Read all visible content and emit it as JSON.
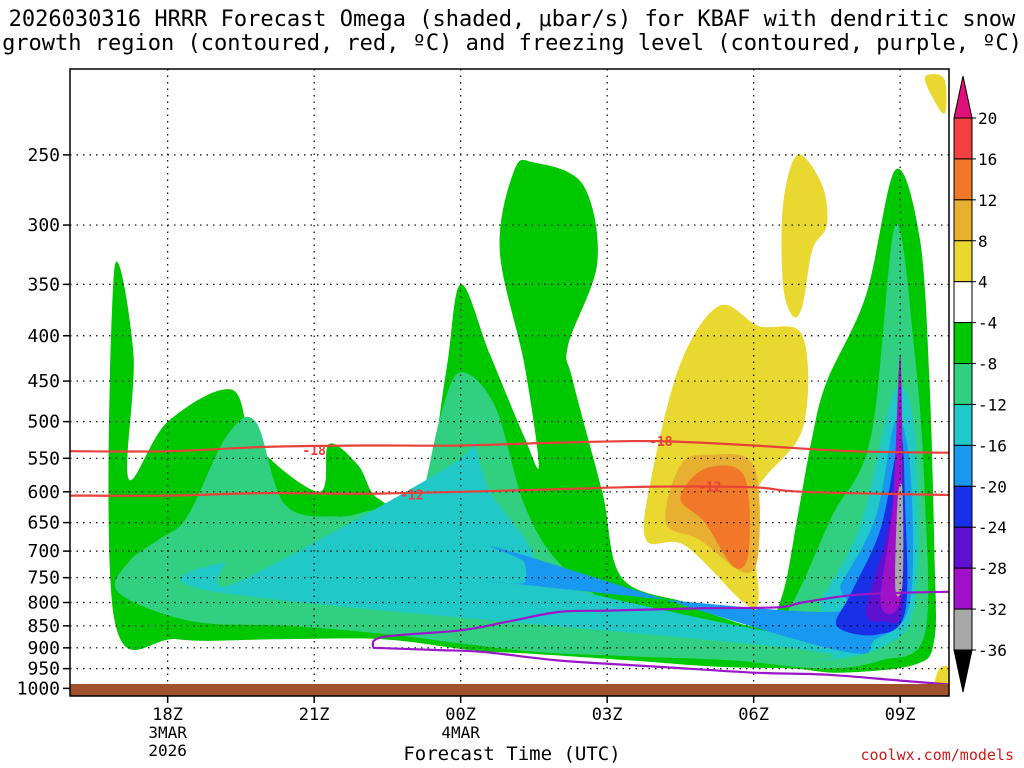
{
  "title_line1": "2026030316 HRRR Forecast Omega (shaded, μbar/s) for KBAF with dendritic snow",
  "title_line2": "growth region (contoured, red, ºC) and freezing level (contoured, purple, ºC)",
  "credit": "coolwx.com/models",
  "colors": {
    "dgz_line": "#e8403a",
    "freezing_line": "#9a16c8",
    "ground": "#a0522d"
  },
  "chart_data": {
    "type": "heatmap",
    "xlabel": "Forecast Time (UTC)",
    "x_ticks": [
      {
        "label": "18Z",
        "sub": [
          "3MAR",
          "2026"
        ],
        "hour": 18
      },
      {
        "label": "21Z",
        "sub": [],
        "hour": 21
      },
      {
        "label": "00Z",
        "sub": [
          "4MAR"
        ],
        "hour": 24
      },
      {
        "label": "03Z",
        "sub": [],
        "hour": 27
      },
      {
        "label": "06Z",
        "sub": [],
        "hour": 30
      },
      {
        "label": "09Z",
        "sub": [],
        "hour": 33
      }
    ],
    "xlim": [
      16,
      34
    ],
    "y_ticks": [
      250,
      300,
      350,
      400,
      450,
      500,
      550,
      600,
      650,
      700,
      750,
      800,
      850,
      900,
      950,
      1000
    ],
    "ylim": [
      200,
      1020
    ],
    "y_scale": "log-pressure",
    "colorbar": {
      "labels": [
        "20",
        "16",
        "12",
        "8",
        "4",
        "-4",
        "-8",
        "-12",
        "-16",
        "-20",
        "-24",
        "-28",
        "-32",
        "-36"
      ],
      "colors": [
        "#e0107a",
        "#f44040",
        "#f07828",
        "#e8b030",
        "#e8d830",
        "#ffffff",
        "#00c800",
        "#30d080",
        "#20c8c8",
        "#1898f0",
        "#1830e8",
        "#6010d0",
        "#a010c8",
        "#a8a8a8",
        "#000000"
      ]
    },
    "shaded_regions": [
      {
        "level": -4,
        "color": "#00c800",
        "points": [
          [
            16.9,
            830
          ],
          [
            16.9,
            340
          ],
          [
            17.3,
            420
          ],
          [
            17.2,
            580
          ],
          [
            18.0,
            500
          ],
          [
            19.3,
            460
          ],
          [
            19.8,
            530
          ],
          [
            21.1,
            600
          ],
          [
            21.3,
            530
          ],
          [
            21.9,
            560
          ],
          [
            22.3,
            610
          ],
          [
            23.2,
            620
          ],
          [
            23.7,
            440
          ],
          [
            24.0,
            350
          ],
          [
            24.6,
            420
          ],
          [
            25.3,
            520
          ],
          [
            25.6,
            560
          ],
          [
            25.3,
            430
          ],
          [
            24.8,
            320
          ],
          [
            25.1,
            260
          ],
          [
            25.5,
            255
          ],
          [
            26.5,
            270
          ],
          [
            26.8,
            330
          ],
          [
            26.2,
            410
          ],
          [
            26.3,
            450
          ],
          [
            26.9,
            600
          ],
          [
            27.3,
            750
          ],
          [
            28.6,
            800
          ],
          [
            29.3,
            830
          ],
          [
            30.2,
            850
          ],
          [
            30.6,
            780
          ],
          [
            30.9,
            640
          ],
          [
            31.2,
            520
          ],
          [
            31.5,
            450
          ],
          [
            32.3,
            360
          ],
          [
            32.9,
            260
          ],
          [
            33.4,
            310
          ],
          [
            33.6,
            450
          ],
          [
            33.7,
            700
          ],
          [
            33.7,
            880
          ],
          [
            33.3,
            940
          ],
          [
            31.8,
            960
          ],
          [
            30.8,
            950
          ],
          [
            29.2,
            945
          ],
          [
            27.5,
            930
          ],
          [
            25.6,
            915
          ],
          [
            24.2,
            905
          ],
          [
            22.4,
            880
          ],
          [
            20.3,
            880
          ],
          [
            18.2,
            880
          ]
        ]
      },
      {
        "level": -8,
        "color": "#30d080",
        "points": [
          [
            17.0,
            780
          ],
          [
            17.2,
            720
          ],
          [
            17.8,
            680
          ],
          [
            18.4,
            640
          ],
          [
            19.2,
            520
          ],
          [
            19.8,
            500
          ],
          [
            20.4,
            620
          ],
          [
            21.5,
            640
          ],
          [
            22.3,
            630
          ],
          [
            23.0,
            660
          ],
          [
            23.6,
            490
          ],
          [
            24.0,
            440
          ],
          [
            24.7,
            480
          ],
          [
            25.3,
            620
          ],
          [
            26.0,
            720
          ],
          [
            27.2,
            810
          ],
          [
            28.8,
            850
          ],
          [
            30.2,
            870
          ],
          [
            30.8,
            800
          ],
          [
            31.6,
            640
          ],
          [
            32.4,
            520
          ],
          [
            32.9,
            300
          ],
          [
            33.3,
            420
          ],
          [
            33.5,
            600
          ],
          [
            33.5,
            870
          ],
          [
            32.6,
            930
          ],
          [
            31.4,
            950
          ],
          [
            29.6,
            930
          ],
          [
            27.5,
            920
          ],
          [
            25.6,
            910
          ],
          [
            24.0,
            890
          ],
          [
            22.6,
            870
          ],
          [
            20.5,
            850
          ],
          [
            18.5,
            840
          ]
        ]
      },
      {
        "level": -12,
        "color": "#20c8c8",
        "points": [
          [
            19.1,
            780
          ],
          [
            19.2,
            720
          ],
          [
            19.4,
            760
          ],
          [
            23.8,
            560
          ],
          [
            24.2,
            520
          ],
          [
            24.6,
            600
          ],
          [
            25.4,
            690
          ],
          [
            25.6,
            770
          ],
          [
            24.8,
            800
          ],
          [
            24.0,
            790
          ],
          [
            23.5,
            720
          ],
          [
            30.8,
            870
          ],
          [
            31.4,
            790
          ],
          [
            32.2,
            650
          ],
          [
            32.9,
            460
          ],
          [
            33.3,
            520
          ],
          [
            33.3,
            800
          ],
          [
            32.6,
            900
          ],
          [
            31.2,
            930
          ],
          [
            30.7,
            900
          ]
        ]
      },
      {
        "level": -16,
        "color": "#1898f0",
        "points": [
          [
            25.0,
            700
          ],
          [
            25.3,
            720
          ],
          [
            25.3,
            760
          ],
          [
            24.9,
            760
          ],
          [
            31.4,
            820
          ],
          [
            31.8,
            760
          ],
          [
            32.5,
            640
          ],
          [
            32.9,
            500
          ],
          [
            33.2,
            560
          ],
          [
            33.2,
            800
          ],
          [
            32.5,
            880
          ],
          [
            31.5,
            900
          ]
        ]
      },
      {
        "level": -20,
        "color": "#1830e8",
        "points": [
          [
            31.7,
            850
          ],
          [
            32.0,
            780
          ],
          [
            32.6,
            660
          ],
          [
            33.0,
            520
          ],
          [
            33.1,
            620
          ],
          [
            33.1,
            820
          ],
          [
            32.5,
            870
          ]
        ]
      },
      {
        "level": -24,
        "color": "#6010d0",
        "points": [
          [
            32.3,
            820
          ],
          [
            32.7,
            680
          ],
          [
            33.0,
            560
          ],
          [
            33.05,
            700
          ],
          [
            33.0,
            830
          ],
          [
            32.7,
            840
          ]
        ]
      },
      {
        "level": -28,
        "color": "#a010c8",
        "points": [
          [
            32.6,
            800
          ],
          [
            32.85,
            620
          ],
          [
            33.0,
            420
          ],
          [
            33.05,
            640
          ],
          [
            33.0,
            800
          ]
        ]
      },
      {
        "level": -32,
        "color": "#a8a8a8",
        "points": [
          [
            32.9,
            770
          ],
          [
            32.95,
            610
          ],
          [
            33.05,
            600
          ],
          [
            33.05,
            760
          ]
        ]
      },
      {
        "level": 4,
        "color": "#e8d830",
        "points": [
          [
            27.8,
            680
          ],
          [
            27.9,
            580
          ],
          [
            28.5,
            430
          ],
          [
            29.3,
            370
          ],
          [
            30.1,
            390
          ],
          [
            31.0,
            400
          ],
          [
            31.0,
            510
          ],
          [
            30.0,
            610
          ],
          [
            30.1,
            790
          ],
          [
            29.8,
            800
          ],
          [
            28.6,
            690
          ]
        ]
      },
      {
        "level": 4,
        "color": "#e8d830",
        "points": [
          [
            30.6,
            285
          ],
          [
            30.9,
            250
          ],
          [
            31.4,
            270
          ],
          [
            31.5,
            300
          ],
          [
            31.2,
            320
          ],
          [
            31.0,
            370
          ],
          [
            30.8,
            380
          ],
          [
            30.6,
            350
          ]
        ]
      },
      {
        "level": 8,
        "color": "#e8b030",
        "points": [
          [
            28.2,
            650
          ],
          [
            28.5,
            560
          ],
          [
            29.1,
            545
          ],
          [
            30.0,
            560
          ],
          [
            30.1,
            700
          ],
          [
            29.8,
            740
          ],
          [
            28.9,
            680
          ]
        ]
      },
      {
        "level": 12,
        "color": "#f07828",
        "points": [
          [
            28.5,
            610
          ],
          [
            29.0,
            565
          ],
          [
            29.8,
            575
          ],
          [
            29.9,
            700
          ],
          [
            29.6,
            730
          ],
          [
            29.0,
            650
          ]
        ]
      },
      {
        "level": 4,
        "color": "#e8d830",
        "points": [
          [
            33.6,
            1000
          ],
          [
            33.8,
            950
          ],
          [
            34.0,
            950
          ],
          [
            34.0,
            1010
          ],
          [
            33.0,
            1010
          ]
        ]
      },
      {
        "level": 4,
        "color": "#e8d830",
        "points": [
          [
            33.5,
            205
          ],
          [
            33.9,
            205
          ],
          [
            33.9,
            225
          ]
        ]
      }
    ],
    "contours": [
      {
        "name": "-18",
        "color": "#e8403a",
        "label_at": [
          [
            21.0,
            538
          ],
          [
            28.1,
            526
          ]
        ],
        "points": [
          [
            16,
            540
          ],
          [
            18,
            540
          ],
          [
            20,
            534
          ],
          [
            22,
            532
          ],
          [
            24,
            532
          ],
          [
            26,
            528
          ],
          [
            28,
            526
          ],
          [
            30,
            532
          ],
          [
            32,
            540
          ],
          [
            34,
            542
          ]
        ]
      },
      {
        "name": "-12",
        "color": "#e8403a",
        "label_at": [
          [
            23.0,
            604
          ],
          [
            29.1,
            592
          ]
        ],
        "points": [
          [
            16,
            606
          ],
          [
            18,
            606
          ],
          [
            20,
            602
          ],
          [
            22,
            603
          ],
          [
            24,
            600
          ],
          [
            26,
            596
          ],
          [
            28,
            592
          ],
          [
            30,
            593
          ],
          [
            31,
            600
          ],
          [
            34,
            605
          ]
        ]
      },
      {
        "name": "freezing",
        "color": "#9a16c8",
        "label_at": [],
        "points": [
          [
            22.2,
            900
          ],
          [
            22.4,
            875
          ],
          [
            24.0,
            860
          ],
          [
            25.0,
            840
          ],
          [
            26.0,
            820
          ],
          [
            27.0,
            817
          ],
          [
            29.0,
            812
          ],
          [
            30.5,
            810
          ],
          [
            31.0,
            800
          ],
          [
            32.0,
            785
          ],
          [
            33.0,
            780
          ],
          [
            34.0,
            778
          ]
        ]
      },
      {
        "name": "freezing",
        "color": "#9a16c8",
        "label_at": [],
        "points": [
          [
            22.2,
            900
          ],
          [
            23.5,
            905
          ],
          [
            24.5,
            910
          ],
          [
            26.0,
            930
          ],
          [
            28.0,
            945
          ],
          [
            30.0,
            960
          ],
          [
            31.5,
            965
          ],
          [
            33.0,
            980
          ],
          [
            34.0,
            990
          ]
        ]
      }
    ]
  }
}
